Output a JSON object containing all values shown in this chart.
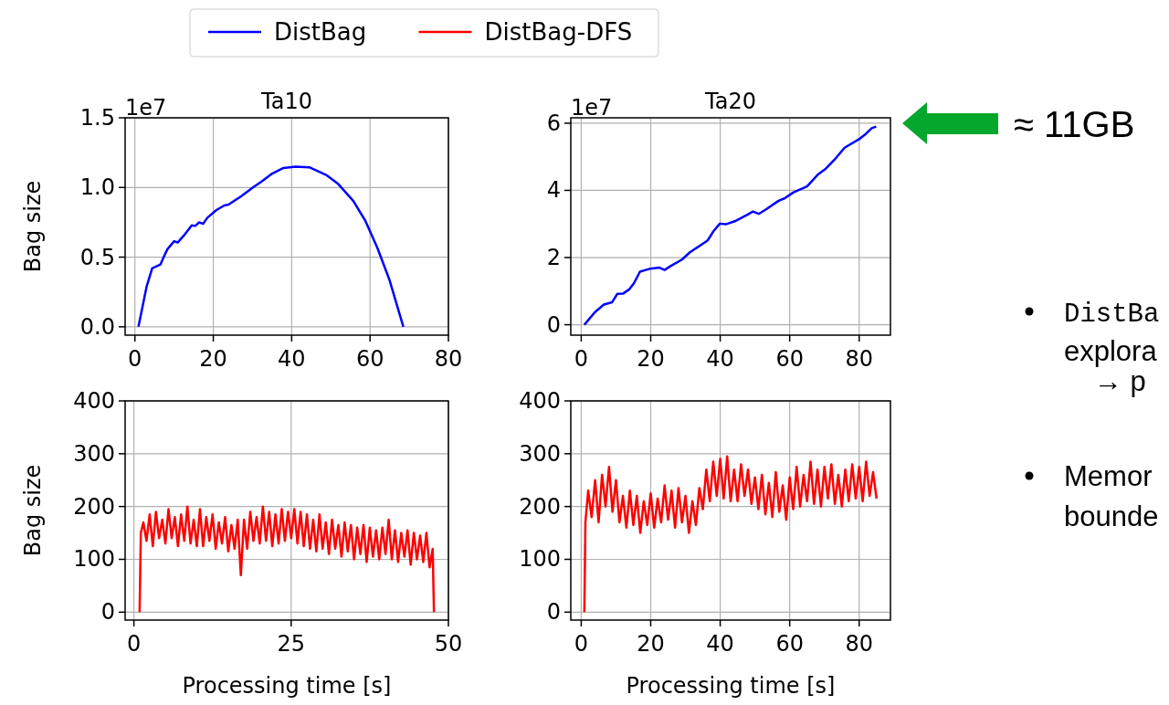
{
  "chart_data": [
    {
      "type": "line",
      "title": "Ta10",
      "ylabel": "Bag size",
      "annotations": [
        "1e7"
      ],
      "xlim": [
        -2.5,
        80
      ],
      "xticks": [
        0,
        20,
        40,
        60,
        80
      ],
      "ylim": [
        -0.06,
        1.5
      ],
      "yticks": [
        {
          "value": 0,
          "label": "0.0"
        },
        0.5,
        {
          "value": 1,
          "label": "1.0"
        },
        1.5
      ],
      "grid": true,
      "legend": "top",
      "series": [
        {
          "name": "DistBag",
          "color": "#0000ff",
          "x": [
            0.9,
            3.0,
            4.4,
            6.5,
            7.5,
            8.3,
            10,
            10.9,
            12.7,
            14.5,
            15.4,
            16.4,
            17.4,
            18.5,
            20.8,
            22.8,
            23.9,
            27.1,
            30.2,
            32.5,
            34.8,
            37.9,
            41.0,
            44.5,
            48.8,
            51.9,
            55.7,
            58.8,
            61.9,
            65.0,
            68.5
          ],
          "values": [
            0,
            0.29,
            0.42,
            0.447,
            0.51,
            0.557,
            0.614,
            0.605,
            0.662,
            0.728,
            0.724,
            0.75,
            0.739,
            0.783,
            0.838,
            0.871,
            0.877,
            0.936,
            1.002,
            1.046,
            1.096,
            1.14,
            1.149,
            1.145,
            1.09,
            1.024,
            0.904,
            0.761,
            0.564,
            0.333,
            0
          ]
        }
      ]
    },
    {
      "type": "line",
      "title": "Ta20",
      "annotations": [
        "1e7",
        "≈ 11GB"
      ],
      "xlim": [
        -3,
        89
      ],
      "xticks": [
        0,
        20,
        40,
        60,
        80
      ],
      "ylim": [
        -0.31,
        6.16
      ],
      "yticks": [
        0,
        2,
        4,
        6
      ],
      "grid": true,
      "series": [
        {
          "color": "#0000ff",
          "x": [
            0.9,
            3.9,
            6.5,
            8.9,
            10.4,
            12.1,
            13.9,
            15.2,
            16.9,
            19.9,
            22.5,
            24.0,
            25.6,
            29.0,
            31.2,
            36.4,
            38.1,
            39.9,
            41.6,
            44.2,
            47.7,
            49.4,
            51.1,
            53.3,
            56.8,
            58.5,
            61.1,
            65.0,
            68.0,
            70.2,
            73.2,
            75.8,
            80.2,
            81.9,
            83.6,
            84.9
          ],
          "values": [
            0,
            0.37,
            0.6,
            0.67,
            0.92,
            0.93,
            1.06,
            1.24,
            1.58,
            1.67,
            1.7,
            1.63,
            1.74,
            1.94,
            2.15,
            2.51,
            2.79,
            3.01,
            2.99,
            3.08,
            3.27,
            3.37,
            3.3,
            3.44,
            3.69,
            3.76,
            3.94,
            4.12,
            4.46,
            4.63,
            4.95,
            5.27,
            5.54,
            5.68,
            5.85,
            5.9
          ]
        }
      ]
    },
    {
      "type": "line",
      "xlabel": "Processing time [s]",
      "ylabel": "Bag size",
      "xlim": [
        -1.4,
        50
      ],
      "xticks": [
        0,
        25,
        50
      ],
      "ylim": [
        -15,
        400
      ],
      "yticks": [
        0,
        100,
        200,
        300,
        400
      ],
      "grid": true,
      "series": [
        {
          "name": "DistBag-DFS",
          "color": "#ff0000",
          "x": [
            0.9,
            1.1,
            1.5,
            2,
            2.5,
            3,
            3.5,
            4,
            4.5,
            5,
            5.5,
            6,
            6.5,
            7,
            7.5,
            8,
            8.5,
            9,
            9.5,
            10,
            10.5,
            11,
            11.5,
            12,
            12.5,
            13,
            13.5,
            14,
            14.5,
            15,
            15.5,
            16,
            16.5,
            17,
            17.5,
            18,
            18.5,
            19,
            19.5,
            20,
            20.5,
            21,
            21.5,
            22,
            22.5,
            23,
            23.5,
            24,
            24.5,
            25,
            25.5,
            26,
            26.5,
            27,
            27.5,
            28,
            28.5,
            29,
            29.5,
            30,
            30.5,
            31,
            31.5,
            32,
            32.5,
            33,
            33.5,
            34,
            34.5,
            35,
            35.5,
            36,
            36.5,
            37,
            37.5,
            38,
            38.5,
            39,
            39.5,
            40,
            40.5,
            41,
            41.5,
            42,
            42.5,
            43,
            43.5,
            44,
            44.5,
            45,
            45.5,
            46,
            46.5,
            47,
            47.5,
            47.7
          ],
          "values": [
            0,
            150,
            170,
            135,
            185,
            125,
            190,
            140,
            175,
            130,
            195,
            140,
            180,
            125,
            185,
            135,
            200,
            130,
            175,
            125,
            195,
            125,
            180,
            135,
            185,
            120,
            170,
            130,
            180,
            115,
            165,
            120,
            175,
            70,
            175,
            120,
            190,
            135,
            180,
            130,
            200,
            135,
            190,
            125,
            185,
            130,
            195,
            135,
            190,
            140,
            195,
            130,
            190,
            125,
            185,
            120,
            175,
            115,
            185,
            120,
            170,
            110,
            175,
            120,
            165,
            105,
            170,
            115,
            165,
            100,
            160,
            110,
            165,
            95,
            160,
            105,
            155,
            100,
            160,
            110,
            175,
            100,
            155,
            95,
            150,
            105,
            155,
            90,
            150,
            100,
            145,
            95,
            150,
            85,
            120,
            0
          ]
        }
      ]
    },
    {
      "type": "line",
      "xlabel": "Processing time [s]",
      "xlim": [
        -3,
        89
      ],
      "xticks": [
        0,
        20,
        40,
        60,
        80
      ],
      "ylim": [
        -15,
        400
      ],
      "yticks": [
        0,
        100,
        200,
        300,
        400
      ],
      "grid": true,
      "series": [
        {
          "color": "#ff0000",
          "x": [
            0.9,
            1.2,
            2,
            3,
            4,
            5,
            6,
            7,
            8,
            9,
            10,
            11,
            12,
            13,
            14,
            15,
            16,
            17,
            18,
            19,
            20,
            21,
            22,
            23,
            24,
            25,
            26,
            27,
            28,
            29,
            30,
            31,
            32,
            33,
            34,
            35,
            36,
            37,
            38,
            39,
            40,
            41,
            42,
            43,
            44,
            45,
            46,
            47,
            48,
            49,
            50,
            51,
            52,
            53,
            54,
            55,
            56,
            57,
            58,
            59,
            60,
            61,
            62,
            63,
            64,
            65,
            66,
            67,
            68,
            69,
            70,
            71,
            72,
            73,
            74,
            75,
            76,
            77,
            78,
            79,
            80,
            81,
            82,
            83,
            84,
            85
          ],
          "values": [
            0,
            170,
            230,
            180,
            250,
            170,
            260,
            200,
            275,
            190,
            250,
            170,
            220,
            160,
            230,
            165,
            220,
            150,
            210,
            165,
            225,
            160,
            215,
            170,
            240,
            175,
            230,
            160,
            235,
            170,
            220,
            150,
            210,
            165,
            235,
            195,
            270,
            210,
            285,
            220,
            290,
            215,
            295,
            210,
            270,
            210,
            280,
            220,
            270,
            205,
            255,
            195,
            260,
            185,
            245,
            180,
            265,
            190,
            240,
            175,
            255,
            195,
            275,
            200,
            260,
            210,
            285,
            205,
            270,
            200,
            275,
            215,
            280,
            205,
            260,
            200,
            270,
            210,
            280,
            215,
            275,
            210,
            285,
            220,
            265,
            215
          ]
        }
      ]
    },
    {
      "type": "other",
      "annotations": [
        "DistBa",
        "explora",
        "→ p",
        "Memor",
        "bounde"
      ]
    }
  ]
}
